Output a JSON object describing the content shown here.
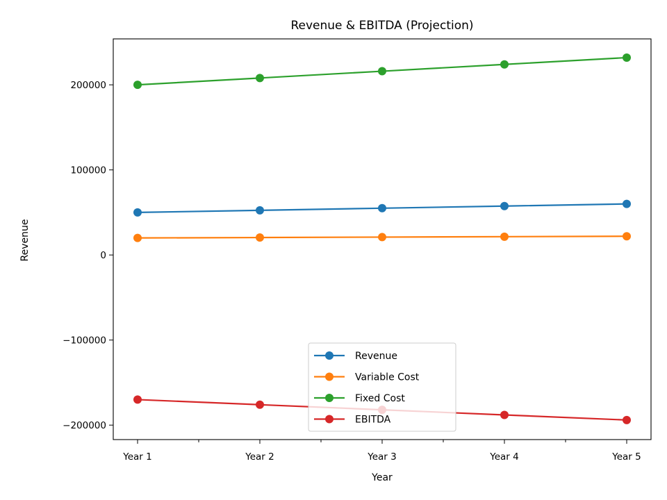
{
  "chart_data": {
    "type": "line",
    "title": "Revenue & EBITDA (Projection)",
    "xlabel": "Year",
    "ylabel": "Revenue",
    "categories": [
      "Year 1",
      "Year 2",
      "Year 3",
      "Year 4",
      "Year 5"
    ],
    "ylim": [
      -217000,
      254000
    ],
    "yticks": [
      -200000,
      -100000,
      0,
      100000,
      200000
    ],
    "ytick_labels": [
      "−200000",
      "−100000",
      "0",
      "100000",
      "200000"
    ],
    "grid": false,
    "legend_position": "lower center",
    "series": [
      {
        "name": "Revenue",
        "color": "#1f77b4",
        "values": [
          50000,
          52500,
          55000,
          57500,
          60000
        ]
      },
      {
        "name": "Variable Cost",
        "color": "#ff7f0e",
        "values": [
          20000,
          20500,
          21000,
          21500,
          22000
        ]
      },
      {
        "name": "Fixed Cost",
        "color": "#2ca02c",
        "values": [
          200000,
          208000,
          216000,
          224000,
          232000
        ]
      },
      {
        "name": "EBITDA",
        "color": "#d62728",
        "values": [
          -170000,
          -176000,
          -182000,
          -188000,
          -194000
        ]
      }
    ]
  }
}
